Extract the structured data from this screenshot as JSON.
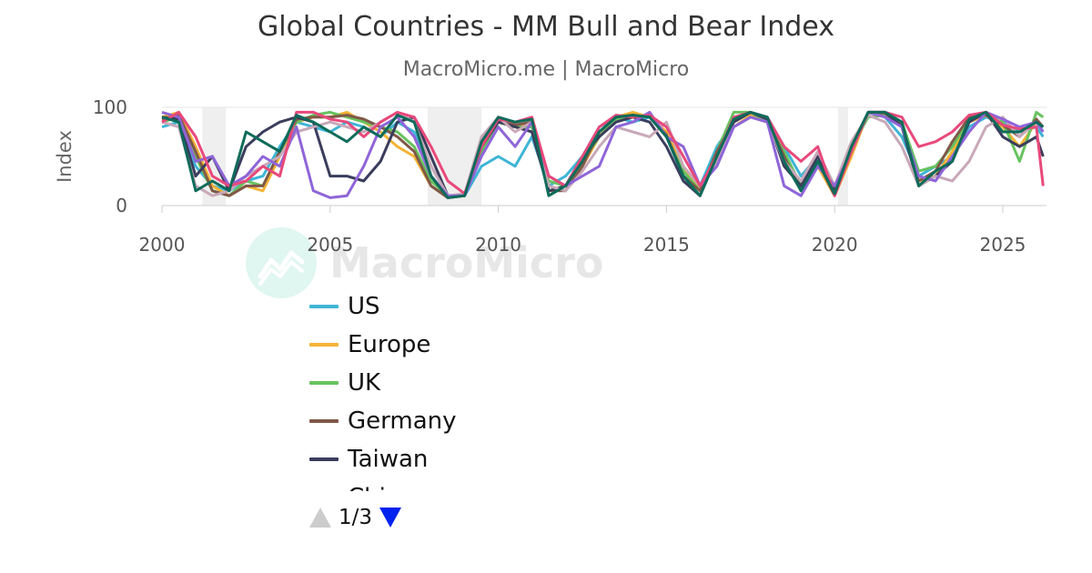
{
  "header": {
    "title": "Global Countries - MM Bull and Bear Index",
    "subtitle": "MacroMicro.me | MacroMicro"
  },
  "watermark": {
    "text": "MacroMicro",
    "icon": "mm-logo-icon"
  },
  "legend": {
    "items": [
      {
        "name": "US",
        "color": "#3fb5d6"
      },
      {
        "name": "Europe",
        "color": "#f5b335"
      },
      {
        "name": "UK",
        "color": "#67c35f"
      },
      {
        "name": "Germany",
        "color": "#7f5848"
      },
      {
        "name": "Taiwan",
        "color": "#3a3d5c"
      },
      {
        "name": "China",
        "color": "#c8a8b8"
      }
    ],
    "page": "1/3"
  },
  "chart_data": {
    "type": "line",
    "ylabel": "Index",
    "xlim": [
      2000,
      2026.3
    ],
    "ylim": [
      0,
      100
    ],
    "yticks": [
      0,
      100
    ],
    "xticks": [
      2000,
      2005,
      2010,
      2015,
      2020,
      2025
    ],
    "grid": true,
    "recession_shading": [
      [
        2001.2,
        2001.9
      ],
      [
        2007.9,
        2009.5
      ],
      [
        2020.1,
        2020.4
      ]
    ],
    "series": [
      {
        "name": "US",
        "color": "#3fb5d6",
        "x": [
          2000,
          2000.5,
          2001,
          2001.5,
          2002,
          2002.5,
          2003,
          2003.5,
          2004,
          2004.5,
          2005,
          2005.5,
          2006,
          2006.5,
          2007,
          2007.5,
          2008,
          2008.5,
          2009,
          2009.5,
          2010,
          2010.5,
          2011,
          2011.5,
          2012,
          2012.5,
          2013,
          2013.5,
          2014,
          2014.5,
          2015,
          2015.5,
          2016,
          2016.5,
          2017,
          2017.5,
          2018,
          2018.5,
          2019,
          2019.5,
          2020,
          2020.5,
          2021,
          2021.5,
          2022,
          2022.5,
          2023,
          2023.5,
          2024,
          2024.5,
          2025,
          2025.5,
          2026,
          2026.2
        ],
        "y": [
          80,
          85,
          40,
          20,
          15,
          25,
          30,
          60,
          85,
          80,
          75,
          85,
          80,
          70,
          85,
          75,
          30,
          10,
          10,
          40,
          50,
          40,
          70,
          20,
          30,
          50,
          80,
          90,
          85,
          90,
          70,
          30,
          20,
          60,
          85,
          95,
          90,
          60,
          30,
          50,
          20,
          60,
          95,
          90,
          70,
          30,
          40,
          50,
          80,
          90,
          85,
          75,
          80,
          70
        ]
      },
      {
        "name": "Europe",
        "color": "#f5b335",
        "x": [
          2000,
          2000.5,
          2001,
          2001.5,
          2002,
          2002.5,
          2003,
          2003.5,
          2004,
          2004.5,
          2005,
          2005.5,
          2006,
          2006.5,
          2007,
          2007.5,
          2008,
          2008.5,
          2009,
          2009.5,
          2010,
          2010.5,
          2011,
          2011.5,
          2012,
          2012.5,
          2013,
          2013.5,
          2014,
          2014.5,
          2015,
          2015.5,
          2016,
          2016.5,
          2017,
          2017.5,
          2018,
          2018.5,
          2019,
          2019.5,
          2020,
          2020.5,
          2021,
          2021.5,
          2022,
          2022.5,
          2023,
          2023.5,
          2024,
          2024.5,
          2025,
          2025.5,
          2026,
          2026.2
        ],
        "y": [
          90,
          95,
          60,
          20,
          10,
          20,
          15,
          50,
          85,
          90,
          90,
          95,
          85,
          75,
          60,
          50,
          20,
          8,
          10,
          60,
          85,
          80,
          85,
          20,
          15,
          40,
          70,
          90,
          95,
          90,
          75,
          40,
          15,
          50,
          80,
          92,
          85,
          50,
          15,
          40,
          10,
          50,
          95,
          95,
          80,
          25,
          30,
          55,
          85,
          92,
          80,
          60,
          85,
          80
        ]
      },
      {
        "name": "UK",
        "color": "#67c35f",
        "x": [
          2000,
          2000.5,
          2001,
          2001.5,
          2002,
          2002.5,
          2003,
          2003.5,
          2004,
          2004.5,
          2005,
          2005.5,
          2006,
          2006.5,
          2007,
          2007.5,
          2008,
          2008.5,
          2009,
          2009.5,
          2010,
          2010.5,
          2011,
          2011.5,
          2012,
          2012.5,
          2013,
          2013.5,
          2014,
          2014.5,
          2015,
          2015.5,
          2016,
          2016.5,
          2017,
          2017.5,
          2018,
          2018.5,
          2019,
          2019.5,
          2020,
          2020.5,
          2021,
          2021.5,
          2022,
          2022.5,
          2023,
          2023.5,
          2024,
          2024.5,
          2025,
          2025.5,
          2026,
          2026.2
        ],
        "y": [
          85,
          90,
          50,
          15,
          10,
          25,
          20,
          55,
          85,
          92,
          95,
          90,
          85,
          80,
          75,
          60,
          25,
          10,
          10,
          55,
          85,
          80,
          80,
          25,
          20,
          45,
          70,
          88,
          92,
          90,
          70,
          35,
          15,
          55,
          95,
          95,
          85,
          55,
          20,
          45,
          15,
          60,
          90,
          92,
          85,
          35,
          40,
          60,
          88,
          95,
          85,
          45,
          95,
          90
        ]
      },
      {
        "name": "Germany",
        "color": "#7f5848",
        "x": [
          2000,
          2000.5,
          2001,
          2001.5,
          2002,
          2002.5,
          2003,
          2003.5,
          2004,
          2004.5,
          2005,
          2005.5,
          2006,
          2006.5,
          2007,
          2007.5,
          2008,
          2008.5,
          2009,
          2009.5,
          2010,
          2010.5,
          2011,
          2011.5,
          2012,
          2012.5,
          2013,
          2013.5,
          2014,
          2014.5,
          2015,
          2015.5,
          2016,
          2016.5,
          2017,
          2017.5,
          2018,
          2018.5,
          2019,
          2019.5,
          2020,
          2020.5,
          2021,
          2021.5,
          2022,
          2022.5,
          2023,
          2023.5,
          2024,
          2024.5,
          2025,
          2025.5,
          2026,
          2026.2
        ],
        "y": [
          88,
          92,
          55,
          15,
          10,
          20,
          20,
          55,
          88,
          90,
          90,
          92,
          88,
          80,
          70,
          55,
          20,
          8,
          10,
          60,
          88,
          82,
          85,
          15,
          15,
          40,
          75,
          90,
          92,
          90,
          72,
          30,
          15,
          55,
          85,
          95,
          88,
          50,
          15,
          45,
          10,
          55,
          95,
          94,
          82,
          25,
          35,
          65,
          90,
          92,
          82,
          70,
          88,
          80
        ]
      },
      {
        "name": "Taiwan",
        "color": "#3a3d5c",
        "x": [
          2000,
          2000.5,
          2001,
          2001.5,
          2002,
          2002.5,
          2003,
          2003.5,
          2004,
          2004.5,
          2005,
          2005.5,
          2006,
          2006.5,
          2007,
          2007.5,
          2008,
          2008.5,
          2009,
          2009.5,
          2010,
          2010.5,
          2011,
          2011.5,
          2012,
          2012.5,
          2013,
          2013.5,
          2014,
          2014.5,
          2015,
          2015.5,
          2016,
          2016.5,
          2017,
          2017.5,
          2018,
          2018.5,
          2019,
          2019.5,
          2020,
          2020.5,
          2021,
          2021.5,
          2022,
          2022.5,
          2023,
          2023.5,
          2024,
          2024.5,
          2025,
          2025.5,
          2026,
          2026.2
        ],
        "y": [
          90,
          88,
          30,
          50,
          15,
          60,
          75,
          85,
          90,
          85,
          30,
          30,
          25,
          45,
          85,
          90,
          50,
          10,
          10,
          60,
          85,
          80,
          75,
          15,
          20,
          50,
          70,
          85,
          90,
          85,
          60,
          25,
          10,
          50,
          85,
          95,
          88,
          40,
          20,
          50,
          15,
          60,
          95,
          95,
          80,
          20,
          30,
          45,
          85,
          95,
          70,
          60,
          70,
          50
        ]
      },
      {
        "name": "China",
        "color": "#c8a8b8",
        "x": [
          2000,
          2000.5,
          2001,
          2001.5,
          2002,
          2002.5,
          2003,
          2003.5,
          2004,
          2004.5,
          2005,
          2005.5,
          2006,
          2006.5,
          2007,
          2007.5,
          2008,
          2008.5,
          2009,
          2009.5,
          2010,
          2010.5,
          2011,
          2011.5,
          2012,
          2012.5,
          2013,
          2013.5,
          2014,
          2014.5,
          2015,
          2015.5,
          2016,
          2016.5,
          2017,
          2017.5,
          2018,
          2018.5,
          2019,
          2019.5,
          2020,
          2020.5,
          2021,
          2021.5,
          2022,
          2022.5,
          2023,
          2023.5,
          2024,
          2024.5,
          2025,
          2025.5,
          2026,
          2026.2
        ],
        "y": [
          85,
          80,
          20,
          10,
          15,
          30,
          40,
          50,
          75,
          80,
          85,
          80,
          75,
          85,
          95,
          85,
          40,
          10,
          12,
          70,
          90,
          75,
          85,
          20,
          15,
          35,
          60,
          80,
          75,
          70,
          85,
          40,
          20,
          45,
          80,
          90,
          85,
          45,
          25,
          55,
          20,
          65,
          92,
          85,
          60,
          20,
          30,
          25,
          45,
          80,
          90,
          70,
          85,
          75
        ]
      },
      {
        "name": "",
        "color": "#8f65d8",
        "x": [
          2000,
          2000.5,
          2001,
          2001.5,
          2002,
          2002.5,
          2003,
          2003.5,
          2004,
          2004.5,
          2005,
          2005.5,
          2006,
          2006.5,
          2007,
          2007.5,
          2008,
          2008.5,
          2009,
          2009.5,
          2010,
          2010.5,
          2011,
          2011.5,
          2012,
          2012.5,
          2013,
          2013.5,
          2014,
          2014.5,
          2015,
          2015.5,
          2016,
          2016.5,
          2017,
          2017.5,
          2018,
          2018.5,
          2019,
          2019.5,
          2020,
          2020.5,
          2021,
          2021.5,
          2022,
          2022.5,
          2023,
          2023.5,
          2024,
          2024.5,
          2025,
          2025.5,
          2026,
          2026.2
        ],
        "y": [
          95,
          90,
          45,
          50,
          20,
          30,
          50,
          40,
          80,
          15,
          8,
          10,
          40,
          80,
          90,
          70,
          30,
          10,
          10,
          50,
          80,
          60,
          85,
          30,
          20,
          30,
          40,
          80,
          85,
          95,
          70,
          60,
          20,
          40,
          80,
          90,
          85,
          20,
          10,
          40,
          20,
          55,
          95,
          90,
          80,
          30,
          25,
          50,
          75,
          95,
          88,
          80,
          85,
          75
        ]
      },
      {
        "name": "",
        "color": "#e8497b",
        "x": [
          2000,
          2000.5,
          2001,
          2001.5,
          2002,
          2002.5,
          2003,
          2003.5,
          2004,
          2004.5,
          2005,
          2005.5,
          2006,
          2006.5,
          2007,
          2007.5,
          2008,
          2008.5,
          2009,
          2009.5,
          2010,
          2010.5,
          2011,
          2011.5,
          2012,
          2012.5,
          2013,
          2013.5,
          2014,
          2014.5,
          2015,
          2015.5,
          2016,
          2016.5,
          2017,
          2017.5,
          2018,
          2018.5,
          2019,
          2019.5,
          2020,
          2020.5,
          2021,
          2021.5,
          2022,
          2022.5,
          2023,
          2023.5,
          2024,
          2024.5,
          2025,
          2025.5,
          2026,
          2026.2
        ],
        "y": [
          85,
          95,
          70,
          30,
          20,
          25,
          40,
          30,
          95,
          95,
          88,
          85,
          70,
          85,
          95,
          90,
          60,
          25,
          12,
          60,
          88,
          85,
          90,
          30,
          20,
          50,
          80,
          92,
          90,
          92,
          80,
          50,
          20,
          50,
          90,
          95,
          90,
          60,
          45,
          60,
          10,
          55,
          95,
          95,
          90,
          60,
          65,
          75,
          92,
          95,
          82,
          78,
          80,
          20
        ]
      },
      {
        "name": "",
        "color": "#0d6b5a",
        "x": [
          2000,
          2000.5,
          2001,
          2001.5,
          2002,
          2002.5,
          2003,
          2003.5,
          2004,
          2004.5,
          2005,
          2005.5,
          2006,
          2006.5,
          2007,
          2007.5,
          2008,
          2008.5,
          2009,
          2009.5,
          2010,
          2010.5,
          2011,
          2011.5,
          2012,
          2012.5,
          2013,
          2013.5,
          2014,
          2014.5,
          2015,
          2015.5,
          2016,
          2016.5,
          2017,
          2017.5,
          2018,
          2018.5,
          2019,
          2019.5,
          2020,
          2020.5,
          2021,
          2021.5,
          2022,
          2022.5,
          2023,
          2023.5,
          2024,
          2024.5,
          2025,
          2025.5,
          2026,
          2026.2
        ],
        "y": [
          90,
          85,
          15,
          25,
          15,
          75,
          65,
          55,
          92,
          85,
          75,
          65,
          80,
          70,
          92,
          85,
          30,
          8,
          10,
          65,
          90,
          85,
          88,
          10,
          20,
          45,
          75,
          90,
          92,
          90,
          70,
          30,
          10,
          50,
          88,
          95,
          90,
          45,
          15,
          45,
          12,
          60,
          95,
          95,
          85,
          20,
          35,
          45,
          88,
          95,
          75,
          75,
          85,
          80
        ]
      }
    ]
  }
}
